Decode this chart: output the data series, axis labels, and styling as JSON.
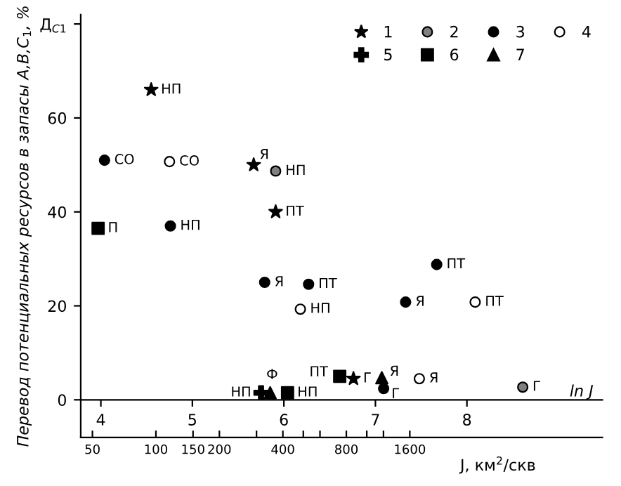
{
  "chart_data": {
    "type": "scatter",
    "ylabel": "Перевод потенциальных ресурсов в запасы A,B,C$_{1}$, %",
    "xlabel": "ln J",
    "x2label": "J, км$^{2}$/скв",
    "xlim": [
      3.78,
      9.48
    ],
    "xticks": [
      4,
      5,
      6,
      7,
      8
    ],
    "x2lim": [
      44,
      13100
    ],
    "log": "x2",
    "x2ticks": [
      50,
      100,
      150,
      200,
      {
        "value": 300,
        "label": null
      },
      400,
      {
        "value": 500,
        "label": null
      },
      {
        "value": 600,
        "label": null
      },
      800,
      {
        "value": 1000,
        "label": null
      },
      {
        "value": 1200,
        "label": null
      },
      1600
    ],
    "ylim": [
      -8,
      82
    ],
    "yticks": [
      0,
      20,
      40,
      60,
      {
        "value": 80,
        "label": "Д$_{С1}$"
      }
    ],
    "grid": false,
    "legend": "top right",
    "series": [
      {
        "name": "1",
        "marker": "star",
        "color": "#000000",
        "x": [
          4.55,
          5.67,
          5.91,
          6.76
        ],
        "values": [
          66,
          50,
          40,
          4.5
        ]
      },
      {
        "name": "2",
        "marker": "circle",
        "color": "#7f7f7f",
        "x": [
          5.91,
          8.61
        ],
        "values": [
          48.7,
          2.7
        ]
      },
      {
        "name": "3",
        "marker": "circle",
        "color": "#000000",
        "x": [
          4.04,
          4.76,
          5.79,
          6.27,
          7.33,
          7.67,
          7.09
        ],
        "values": [
          51,
          37,
          25,
          24.6,
          20.8,
          28.8,
          2.4
        ]
      },
      {
        "name": "4",
        "marker": "circle",
        "color": "#ffffff",
        "x": [
          4.75,
          6.18,
          8.09,
          7.48
        ],
        "values": [
          50.7,
          19.3,
          20.8,
          4.5
        ]
      },
      {
        "name": "5",
        "marker": "cross",
        "color": "#000000",
        "x": [
          5.75
        ],
        "values": [
          1.5
        ]
      },
      {
        "name": "6",
        "marker": "square",
        "color": "#000000",
        "x": [
          3.97,
          6.04,
          6.61
        ],
        "values": [
          36.5,
          1.5,
          5
        ]
      },
      {
        "name": "7",
        "marker": "triangle",
        "color": "#000000",
        "x": [
          5.85,
          7.07
        ],
        "values": [
          1.5,
          4.7
        ]
      }
    ],
    "annotations": [
      {
        "text": "НП",
        "x": 4.55,
        "y": 66
      },
      {
        "text": "Я",
        "x": 5.67,
        "y": 50
      },
      {
        "text": "ПТ",
        "x": 5.91,
        "y": 40
      },
      {
        "text": "Г",
        "x": 6.76,
        "y": 4.5
      },
      {
        "text": "НП",
        "x": 5.91,
        "y": 48.7
      },
      {
        "text": "Г",
        "x": 8.61,
        "y": 2.7
      },
      {
        "text": "СО",
        "x": 4.04,
        "y": 51
      },
      {
        "text": "НП",
        "x": 4.76,
        "y": 37
      },
      {
        "text": "Я",
        "x": 5.79,
        "y": 25
      },
      {
        "text": "ПТ",
        "x": 6.27,
        "y": 24.6
      },
      {
        "text": "Я",
        "x": 7.33,
        "y": 20.8
      },
      {
        "text": "ПТ",
        "x": 7.67,
        "y": 28.8
      },
      {
        "text": "Г",
        "x": 7.09,
        "y": 2.4
      },
      {
        "text": "СО",
        "x": 4.75,
        "y": 50.7
      },
      {
        "text": "НП",
        "x": 6.18,
        "y": 19.3
      },
      {
        "text": "ПТ",
        "x": 8.09,
        "y": 20.8
      },
      {
        "text": "Я",
        "x": 7.48,
        "y": 4.5
      },
      {
        "text": "НП",
        "x": 5.75,
        "y": 1.5
      },
      {
        "text": "П",
        "x": 3.97,
        "y": 36.5
      },
      {
        "text": "НП",
        "x": 6.04,
        "y": 1.5
      },
      {
        "text": "ПТ",
        "x": 6.61,
        "y": 5
      },
      {
        "text": "Ф",
        "x": 5.85,
        "y": 1.5
      },
      {
        "text": "Я",
        "x": 7.07,
        "y": 4.7
      }
    ]
  }
}
